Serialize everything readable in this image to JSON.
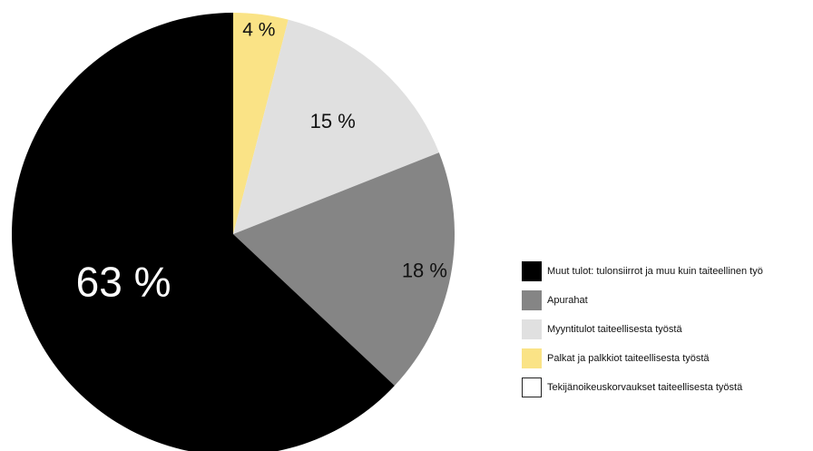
{
  "chart_data": {
    "type": "pie",
    "start_angle_deg": 0,
    "direction": "clockwise",
    "slices": [
      {
        "label": "Palkat ja palkkiot taiteellisesta työstä",
        "value": 4,
        "display": "4 %",
        "color": "#FAE386",
        "label_color": "#111111"
      },
      {
        "label": "Myyntitulot taiteellisesta työstä",
        "value": 15,
        "display": "15 %",
        "color": "#E0E0E0",
        "label_color": "#111111"
      },
      {
        "label": "Apurahat",
        "value": 18,
        "display": "18 %",
        "color": "#858585",
        "label_color": "#111111"
      },
      {
        "label": "Muut tulot: tulonsiirrot ja muu kuin taiteellinen työ",
        "value": 63,
        "display": "63 %",
        "color": "#000000",
        "label_color": "#ffffff"
      }
    ],
    "legend": {
      "position": "right",
      "items": [
        {
          "label": "Muut tulot: tulonsiirrot ja muu kuin taiteellinen työ",
          "color": "#000000"
        },
        {
          "label": "Apurahat",
          "color": "#858585"
        },
        {
          "label": "Myyntitulot taiteellisesta työstä",
          "color": "#E0E0E0"
        },
        {
          "label": "Palkat ja palkkiot taiteellisesta työstä",
          "color": "#FAE386"
        },
        {
          "label": "Tekijänoikeuskorvaukset taiteellisesta työstä",
          "color": "#FFFFFF"
        }
      ]
    }
  }
}
